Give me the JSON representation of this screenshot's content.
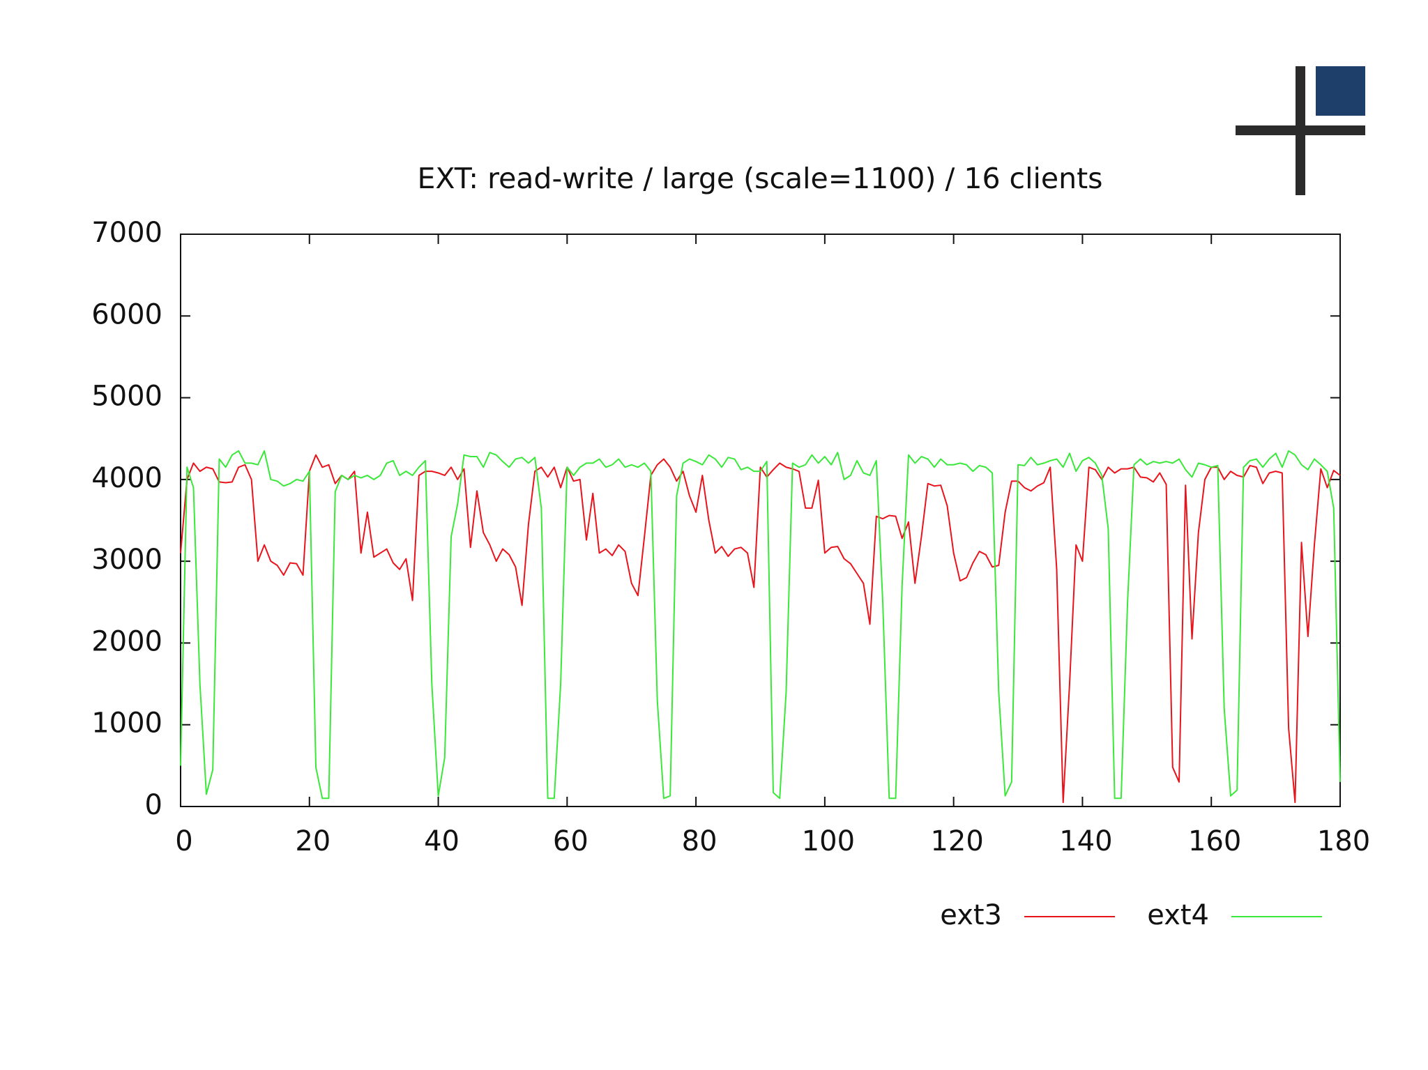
{
  "chart_data": {
    "type": "line",
    "title": "EXT: read-write / large (scale=1100) / 16 clients",
    "x": [
      0,
      1,
      2,
      3,
      4,
      5,
      6,
      7,
      8,
      9,
      10,
      11,
      12,
      13,
      14,
      15,
      16,
      17,
      18,
      19,
      20,
      21,
      22,
      23,
      24,
      25,
      26,
      27,
      28,
      29,
      30,
      31,
      32,
      33,
      34,
      35,
      36,
      37,
      38,
      39,
      40,
      41,
      42,
      43,
      44,
      45,
      46,
      47,
      48,
      49,
      50,
      51,
      52,
      53,
      54,
      55,
      56,
      57,
      58,
      59,
      60,
      61,
      62,
      63,
      64,
      65,
      66,
      67,
      68,
      69,
      70,
      71,
      72,
      73,
      74,
      75,
      76,
      77,
      78,
      79,
      80,
      81,
      82,
      83,
      84,
      85,
      86,
      87,
      88,
      89,
      90,
      91,
      92,
      93,
      94,
      95,
      96,
      97,
      98,
      99,
      100,
      101,
      102,
      103,
      104,
      105,
      106,
      107,
      108,
      109,
      110,
      111,
      112,
      113,
      114,
      115,
      116,
      117,
      118,
      119,
      120,
      121,
      122,
      123,
      124,
      125,
      126,
      127,
      128,
      129,
      130,
      131,
      132,
      133,
      134,
      135,
      136,
      137,
      138,
      139,
      140,
      141,
      142,
      143,
      144,
      145,
      146,
      147,
      148,
      149,
      150,
      151,
      152,
      153,
      154,
      155,
      156,
      157,
      158,
      159,
      160,
      161,
      162,
      163,
      164,
      165,
      166,
      167,
      168,
      169,
      170,
      171,
      172,
      173,
      174,
      175,
      176,
      177,
      178,
      179,
      180
    ],
    "series": [
      {
        "name": "ext3",
        "color": "#e8141c",
        "values": [
          3100,
          4000,
          4200,
          4100,
          4150,
          4130,
          3970,
          3960,
          3970,
          4150,
          4180,
          4000,
          3000,
          3200,
          3000,
          2950,
          2830,
          2980,
          2970,
          2830,
          4100,
          4300,
          4150,
          4180,
          3950,
          4050,
          4000,
          4100,
          3100,
          3600,
          3050,
          3100,
          3150,
          2980,
          2900,
          3030,
          2520,
          4050,
          4100,
          4100,
          4080,
          4050,
          4150,
          4000,
          4130,
          3170,
          3860,
          3350,
          3200,
          3000,
          3150,
          3080,
          2930,
          2460,
          3450,
          4100,
          4150,
          4030,
          4150,
          3900,
          4150,
          3980,
          4000,
          3260,
          3830,
          3100,
          3150,
          3070,
          3200,
          3120,
          2730,
          2580,
          3300,
          4050,
          4180,
          4250,
          4150,
          3980,
          4100,
          3800,
          3600,
          4050,
          3500,
          3100,
          3180,
          3060,
          3150,
          3170,
          3100,
          2680,
          4150,
          4030,
          4120,
          4200,
          4150,
          4130,
          4100,
          3650,
          3650,
          3990,
          3100,
          3170,
          3180,
          3030,
          2970,
          2850,
          2730,
          2230,
          3550,
          3520,
          3560,
          3550,
          3280,
          3480,
          2730,
          3300,
          3950,
          3920,
          3930,
          3680,
          3100,
          2760,
          2800,
          2980,
          3120,
          3080,
          2930,
          2950,
          3600,
          3980,
          3980,
          3900,
          3860,
          3920,
          3960,
          4150,
          2900,
          50,
          1500,
          3200,
          3000,
          4150,
          4120,
          4000,
          4150,
          4080,
          4130,
          4130,
          4150,
          4030,
          4020,
          3970,
          4080,
          3940,
          480,
          300,
          3930,
          2050,
          3350,
          4000,
          4150,
          4150,
          4000,
          4100,
          4050,
          4030,
          4170,
          4150,
          3950,
          4080,
          4100,
          4080,
          960,
          50,
          3230,
          2080,
          3200,
          4130,
          3900,
          4110,
          4050
        ]
      },
      {
        "name": "ext4",
        "color": "#3ae83a",
        "values": [
          500,
          4150,
          3900,
          1500,
          150,
          450,
          4250,
          4150,
          4300,
          4350,
          4200,
          4200,
          4180,
          4350,
          4000,
          3980,
          3920,
          3950,
          4000,
          3980,
          4100,
          480,
          100,
          100,
          3850,
          4050,
          4000,
          4050,
          4020,
          4050,
          4000,
          4050,
          4200,
          4230,
          4050,
          4100,
          4050,
          4150,
          4230,
          1500,
          130,
          600,
          3300,
          3700,
          4300,
          4280,
          4280,
          4150,
          4330,
          4300,
          4220,
          4150,
          4250,
          4270,
          4200,
          4270,
          3650,
          100,
          100,
          1500,
          4150,
          4050,
          4150,
          4200,
          4200,
          4250,
          4150,
          4180,
          4250,
          4150,
          4180,
          4150,
          4200,
          4100,
          1300,
          100,
          130,
          3800,
          4200,
          4250,
          4220,
          4180,
          4300,
          4250,
          4150,
          4270,
          4250,
          4120,
          4150,
          4100,
          4100,
          4220,
          170,
          100,
          1400,
          4200,
          4150,
          4180,
          4300,
          4200,
          4280,
          4180,
          4330,
          4000,
          4050,
          4230,
          4080,
          4050,
          4230,
          2500,
          100,
          100,
          2700,
          4300,
          4200,
          4280,
          4250,
          4150,
          4250,
          4180,
          4180,
          4200,
          4180,
          4100,
          4170,
          4150,
          4080,
          1400,
          130,
          300,
          4180,
          4170,
          4270,
          4180,
          4200,
          4230,
          4250,
          4150,
          4320,
          4100,
          4230,
          4270,
          4200,
          4050,
          3400,
          100,
          100,
          2500,
          4180,
          4250,
          4180,
          4220,
          4200,
          4220,
          4200,
          4250,
          4120,
          4030,
          4200,
          4180,
          4150,
          4170,
          1200,
          130,
          200,
          4150,
          4230,
          4250,
          4150,
          4250,
          4320,
          4150,
          4350,
          4300,
          4180,
          4120,
          4250,
          4180,
          4100,
          3650,
          300
        ]
      }
    ],
    "xlim": [
      0,
      180
    ],
    "xticks": [
      0,
      20,
      40,
      60,
      80,
      100,
      120,
      140,
      160,
      180
    ],
    "ylim": [
      0,
      7000
    ],
    "yticks": [
      0,
      1000,
      2000,
      3000,
      4000,
      5000,
      6000,
      7000
    ],
    "grid": false,
    "legend": "bottom-right"
  }
}
